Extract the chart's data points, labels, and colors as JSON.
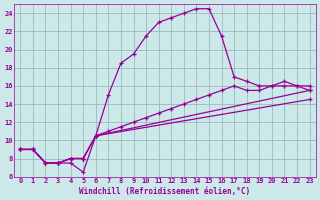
{
  "xlabel": "Windchill (Refroidissement éolien,°C)",
  "bg_color": "#cce8e8",
  "line_color": "#990099",
  "grid_color": "#99bbbb",
  "xlim": [
    -0.5,
    23.5
  ],
  "ylim": [
    6,
    25
  ],
  "xticks": [
    0,
    1,
    2,
    3,
    4,
    5,
    6,
    7,
    8,
    9,
    10,
    11,
    12,
    13,
    14,
    15,
    16,
    17,
    18,
    19,
    20,
    21,
    22,
    23
  ],
  "yticks": [
    6,
    8,
    10,
    12,
    14,
    16,
    18,
    20,
    22,
    24
  ],
  "line1_x": [
    0,
    1,
    2,
    3,
    4,
    5,
    6,
    7,
    8,
    9,
    10,
    11,
    12,
    13,
    14,
    15,
    16,
    17,
    18,
    19,
    20,
    21,
    22,
    23
  ],
  "line1_y": [
    9,
    9,
    7.5,
    7.5,
    7.5,
    6.5,
    10.5,
    15,
    18.5,
    19.5,
    21.5,
    23,
    23.5,
    24,
    24.5,
    24.5,
    21.5,
    17,
    16.5,
    16,
    16,
    16.5,
    16,
    16
  ],
  "line2_x": [
    0,
    1,
    2,
    3,
    4,
    5,
    6,
    7,
    8,
    9,
    10,
    11,
    12,
    13,
    14,
    15,
    16,
    17,
    18,
    19,
    20,
    21,
    22,
    23
  ],
  "line2_y": [
    9,
    9,
    7.5,
    7.5,
    8,
    8,
    10.5,
    11,
    11.5,
    12,
    12.5,
    13,
    13.5,
    14,
    14.5,
    15,
    15.5,
    16,
    15.5,
    15.5,
    16,
    16,
    16,
    15.5
  ],
  "line3_x": [
    0,
    1,
    2,
    3,
    4,
    5,
    6,
    23
  ],
  "line3_y": [
    9,
    9,
    7.5,
    7.5,
    8,
    8,
    10.5,
    15.5
  ],
  "line4_x": [
    0,
    1,
    2,
    3,
    4,
    5,
    6,
    23
  ],
  "line4_y": [
    9,
    9,
    7.5,
    7.5,
    8,
    8,
    10.5,
    14.5
  ]
}
